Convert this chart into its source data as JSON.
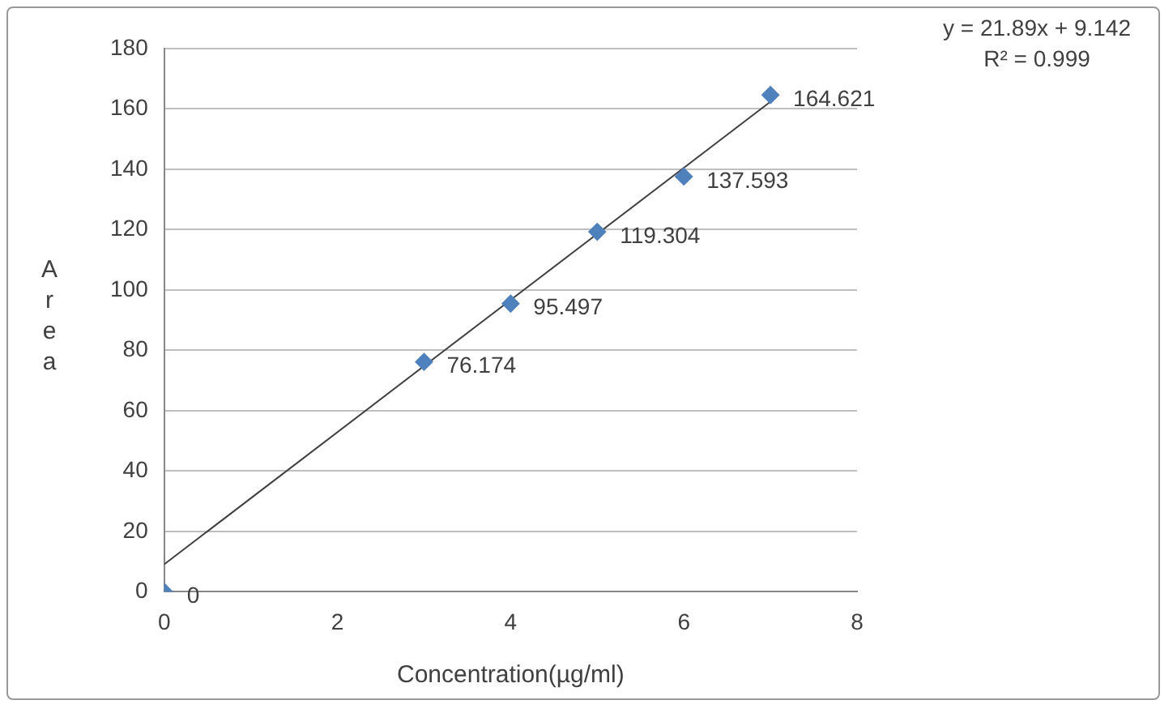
{
  "chart_data": {
    "type": "scatter",
    "xlabel": "Concentration(µg/ml)",
    "ylabel": "Area",
    "x": [
      0,
      3,
      4,
      5,
      6,
      7
    ],
    "series": [
      {
        "color": "#4f81bd",
        "values": [
          0,
          76.174,
          95.497,
          119.304,
          137.593,
          164.621
        ],
        "value_labels": [
          "0",
          "76.174",
          "95.497",
          "119.304",
          "137.593",
          "164.621"
        ],
        "marker": "diamond"
      },
      {
        "type": "line",
        "color": "#404040",
        "x": [
          0,
          7
        ],
        "values": [
          9.1,
          162.4
        ],
        "marker": "none"
      }
    ],
    "annotations": [
      "y = 21.89x + 9.142",
      "R² = 0.999"
    ],
    "xlim": [
      0,
      8
    ],
    "xticks": [
      0,
      2,
      4,
      6,
      8
    ],
    "ylim": [
      0,
      180
    ],
    "yticks": [
      0,
      20,
      40,
      60,
      80,
      100,
      120,
      140,
      160,
      180
    ],
    "grid": "y"
  }
}
